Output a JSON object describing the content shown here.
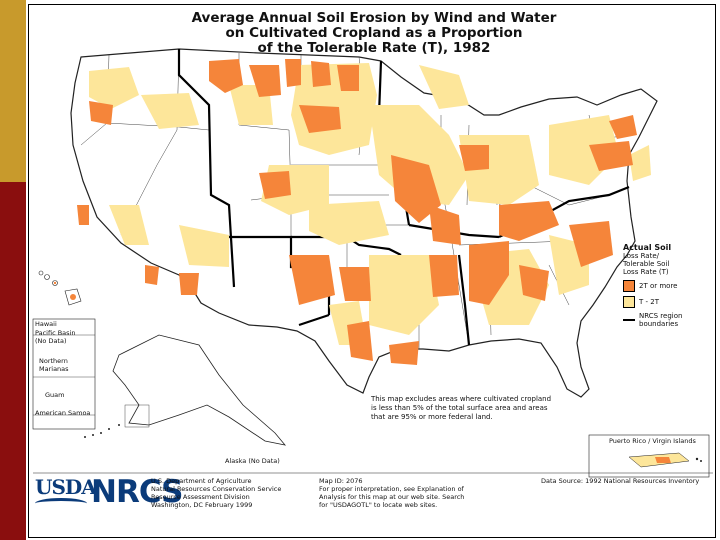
{
  "title": {
    "line1": "Average Annual Soil Erosion by Wind and Water",
    "line2": "on Cultivated Cropland as a Proportion",
    "line3": "of the Tolerable Rate (T), 1982"
  },
  "legend": {
    "heading": "Actual Soil",
    "sub1": "Loss Rate/",
    "sub2": "Tolerable Soil",
    "sub3": "Loss Rate (T)",
    "items": [
      {
        "label": "2T or more",
        "color": "#f5853a"
      },
      {
        "label": "T - 2T",
        "color": "#fde69a"
      },
      {
        "label": "NRCS region boundaries",
        "color": "#000000"
      }
    ]
  },
  "labels": {
    "hawaii": "Hawaii",
    "pacific_basin": "Pacific Basin",
    "no_data": "(No Data)",
    "northern": "Northern",
    "marianas": "Marianas",
    "guam": "Guam",
    "american_samoa": "American Samoa",
    "alaska": "Alaska (No Data)",
    "puerto_rico": "Puerto Rico / Virgin Islands"
  },
  "note": "This map excludes areas where cultivated cropland is less than 5% of the total surface area and areas that are 95% or more federal land.",
  "footer": {
    "usda": "USDA",
    "nrcs": "NRCS",
    "agency1": "U.S. Department of Agriculture",
    "agency2": "Natural Resources Conservation Service",
    "agency3": "Resource Assessment Division",
    "agency4": "Washington, DC   February 1999",
    "map1": "Map ID: 2076",
    "map2": "For proper interpretation, see Explanation of",
    "map3": "Analysis for this map at our web site. Search",
    "map4": "for \"USDAGOTL\" to locate web sites.",
    "source": "Data Source: 1992 National Resources Inventory"
  },
  "colors": {
    "high": "#f5853a",
    "moderate": "#fde69a",
    "gold_bar": "#c89a2c",
    "red_bar": "#8a0e0e"
  }
}
